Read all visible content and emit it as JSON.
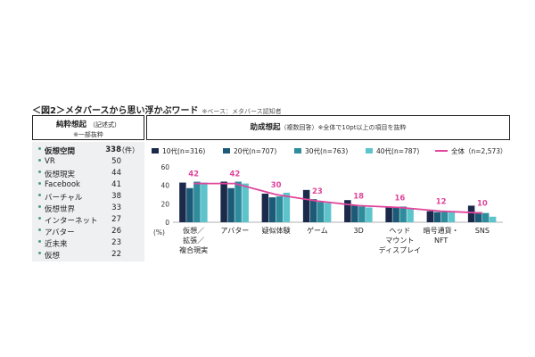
{
  "figure": {
    "title": "＜図2＞メタバースから思い浮かぶワード",
    "note": "※ベース：メタバース認知者"
  },
  "left_panel": {
    "header_title": "純粋想起",
    "header_sub": "（記述式）",
    "header_note": "※一部抜粋",
    "unit": "（件）",
    "items": [
      {
        "term": "仮想空間",
        "count": "338"
      },
      {
        "term": "VR",
        "count": "50"
      },
      {
        "term": "仮想現実",
        "count": "44"
      },
      {
        "term": "Facebook",
        "count": "41"
      },
      {
        "term": "バーチャル",
        "count": "38"
      },
      {
        "term": "仮想世界",
        "count": "33"
      },
      {
        "term": "インターネット",
        "count": "27"
      },
      {
        "term": "アバター",
        "count": "26"
      },
      {
        "term": "近未来",
        "count": "23"
      },
      {
        "term": "仮想",
        "count": "22"
      }
    ]
  },
  "right_panel": {
    "header_title": "助成想起",
    "header_sub": "（複数回答）",
    "header_note": "※全体で10pt以上の項目を抜粋"
  },
  "colors": {
    "s10": "#1b2a4a",
    "s20": "#1d5a78",
    "s30": "#2f8c9c",
    "s40": "#5ec4cc",
    "total": "#e0449b",
    "panel_bg": "#eef0f1",
    "bullet": "#4a9c8c"
  },
  "chart_data": {
    "type": "bar",
    "ylabel": "(%)",
    "ylim": [
      0,
      60
    ],
    "yticks": [
      "0",
      "20",
      "40",
      "60"
    ],
    "categories": [
      "仮想／\n拡張／\n複合現実",
      "アバター",
      "疑似体験",
      "ゲーム",
      "3D",
      "ヘッド\nマウント\nディスプレイ",
      "暗号通貨・\nNFT",
      "SNS"
    ],
    "series": [
      {
        "name": "10代(n=316)",
        "values": [
          43,
          44,
          31,
          35,
          24,
          17,
          12,
          18
        ]
      },
      {
        "name": "20代(n=707)",
        "values": [
          37,
          37,
          27,
          25,
          18,
          16,
          11,
          11
        ]
      },
      {
        "name": "30代(n=763)",
        "values": [
          44,
          44,
          28,
          22,
          17,
          17,
          12,
          10
        ]
      },
      {
        "name": "40代(n=787)",
        "values": [
          43,
          42,
          32,
          21,
          16,
          15,
          12,
          6
        ]
      }
    ],
    "line": {
      "name": "全体（n=2,573）",
      "values": [
        42,
        42,
        30,
        23,
        18,
        16,
        12,
        10
      ],
      "labels": [
        "42",
        "42",
        "30",
        "23",
        "18",
        "16",
        "12",
        "10"
      ]
    },
    "legend": "top"
  }
}
